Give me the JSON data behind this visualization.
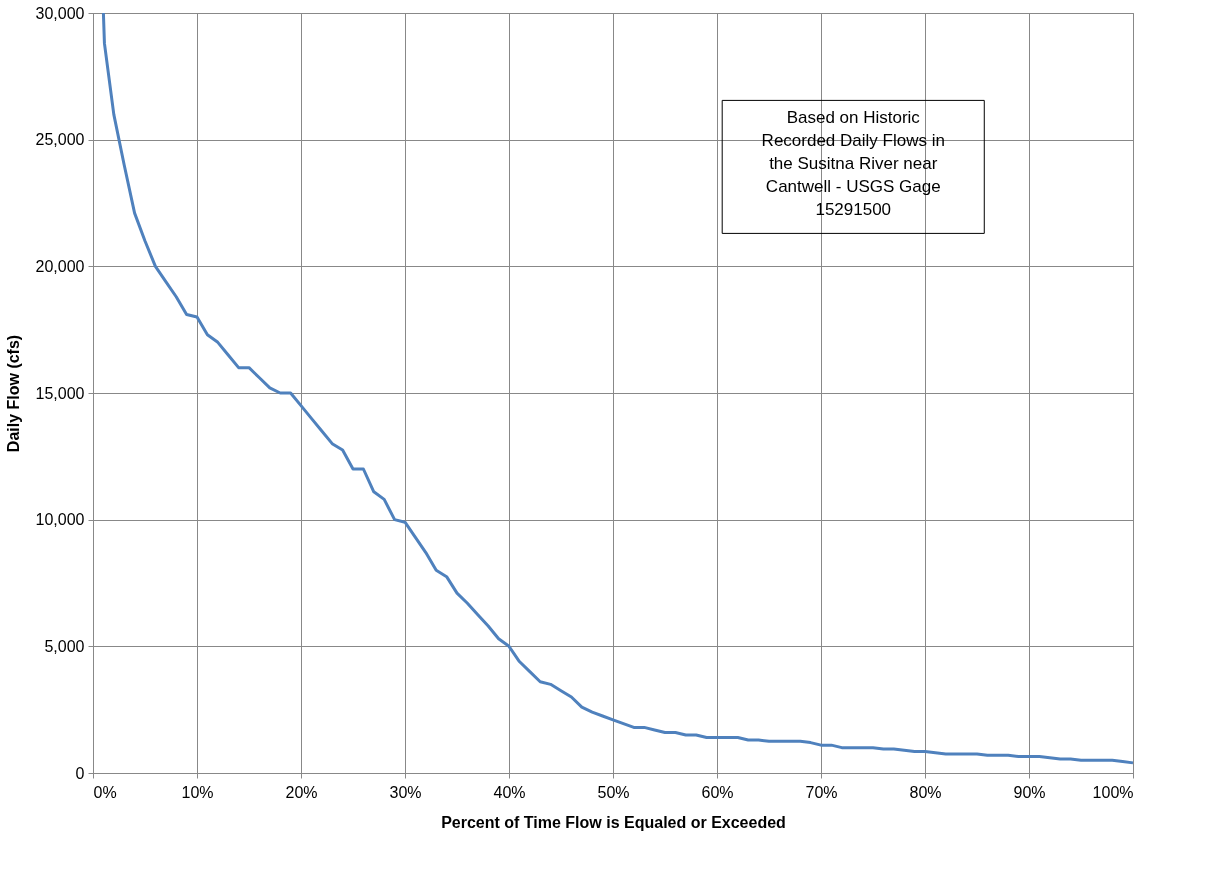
{
  "chart_data": {
    "type": "line",
    "xlabel": "Percent of Time Flow is Equaled or Exceeded",
    "ylabel": "Daily Flow (cfs)",
    "x": [
      1,
      1.1,
      2,
      3,
      4,
      5,
      6,
      7,
      8,
      9,
      10,
      11,
      12,
      13,
      14,
      15,
      16,
      17,
      18,
      19,
      20,
      21,
      22,
      23,
      24,
      25,
      26,
      27,
      28,
      29,
      30,
      31,
      32,
      33,
      34,
      35,
      36,
      37,
      38,
      39,
      40,
      41,
      42,
      43,
      44,
      45,
      46,
      47,
      48,
      49,
      50,
      51,
      52,
      53,
      54,
      55,
      56,
      57,
      58,
      59,
      60,
      61,
      62,
      63,
      64,
      65,
      66,
      67,
      68,
      69,
      70,
      71,
      72,
      73,
      74,
      75,
      76,
      77,
      78,
      79,
      80,
      81,
      82,
      83,
      84,
      85,
      86,
      87,
      88,
      89,
      90,
      91,
      92,
      93,
      94,
      95,
      96,
      97,
      98,
      99,
      100
    ],
    "series": [
      {
        "color": "#4f81bd",
        "values": [
          30000,
          28800,
          26000,
          24000,
          22100,
          21000,
          20000,
          19400,
          18800,
          18100,
          18000,
          17300,
          17000,
          16500,
          16000,
          16000,
          15600,
          15200,
          15000,
          15000,
          14500,
          14000,
          13500,
          13000,
          12750,
          12000,
          12000,
          11100,
          10800,
          10000,
          9900,
          9300,
          8700,
          8000,
          7750,
          7100,
          6700,
          6250,
          5800,
          5300,
          5000,
          4400,
          4000,
          3600,
          3500,
          3250,
          3000,
          2600,
          2400,
          2250,
          2100,
          1950,
          1800,
          1800,
          1700,
          1600,
          1600,
          1500,
          1500,
          1400,
          1400,
          1400,
          1400,
          1300,
          1300,
          1250,
          1250,
          1250,
          1250,
          1200,
          1100,
          1100,
          1000,
          1000,
          1000,
          1000,
          950,
          950,
          900,
          850,
          850,
          800,
          750,
          750,
          750,
          750,
          700,
          700,
          700,
          650,
          650,
          650,
          600,
          550,
          550,
          500,
          500,
          500,
          500,
          450,
          400
        ]
      }
    ],
    "xlim": [
      0,
      100
    ],
    "xticks": [
      {
        "value": 0,
        "label": "0%"
      },
      {
        "value": 10,
        "label": "10%"
      },
      {
        "value": 20,
        "label": "20%"
      },
      {
        "value": 30,
        "label": "30%"
      },
      {
        "value": 40,
        "label": "40%"
      },
      {
        "value": 50,
        "label": "50%"
      },
      {
        "value": 60,
        "label": "60%"
      },
      {
        "value": 70,
        "label": "70%"
      },
      {
        "value": 80,
        "label": "80%"
      },
      {
        "value": 90,
        "label": "90%"
      },
      {
        "value": 100,
        "label": "100%"
      }
    ],
    "ylim": [
      0,
      30000
    ],
    "yticks": [
      0,
      {
        "value": 5000,
        "label": "5,000"
      },
      {
        "value": 10000,
        "label": "10,000"
      },
      {
        "value": 15000,
        "label": "15,000"
      },
      {
        "value": 20000,
        "label": "20,000"
      },
      {
        "value": 25000,
        "label": "25,000"
      },
      {
        "value": 30000,
        "label": "30,000"
      }
    ],
    "grid": true,
    "marker": "none",
    "line_style": "solid",
    "annotations": [
      "Based on Historic\nRecorded Daily Flows in\nthe Susitna River near\nCantwell - USGS Gage\n15291500"
    ]
  }
}
